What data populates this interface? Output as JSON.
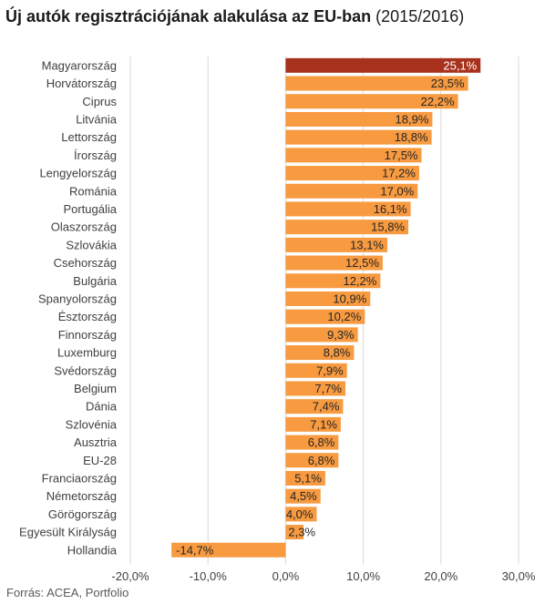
{
  "chart_data": {
    "type": "bar",
    "orientation": "horizontal",
    "title_main": "Új autók regisztrációjának alakulása az EU-ban",
    "title_suffix": "(2015/2016)",
    "source": "Forrás: ACEA, Portfolio",
    "categories": [
      "Magyarország",
      "Horvátország",
      "Ciprus",
      "Litvánia",
      "Lettország",
      "Írország",
      "Lengyelország",
      "Románia",
      "Portugália",
      "Olaszország",
      "Szlovákia",
      "Csehország",
      "Bulgária",
      "Spanyolország",
      "Észtország",
      "Finnország",
      "Luxemburg",
      "Svédország",
      "Belgium",
      "Dánia",
      "Szlovénia",
      "Ausztria",
      "EU-28",
      "Franciaország",
      "Németország",
      "Görögország",
      "Egyesült Királyság",
      "Hollandia"
    ],
    "values": [
      25.1,
      23.5,
      22.2,
      18.9,
      18.8,
      17.5,
      17.2,
      17.0,
      16.1,
      15.8,
      13.1,
      12.5,
      12.2,
      10.9,
      10.2,
      9.3,
      8.8,
      7.9,
      7.7,
      7.4,
      7.1,
      6.8,
      6.8,
      5.1,
      4.5,
      4.0,
      2.3,
      -14.7
    ],
    "value_labels": [
      "25,1%",
      "23,5%",
      "22,2%",
      "18,9%",
      "18,8%",
      "17,5%",
      "17,2%",
      "17,0%",
      "16,1%",
      "15,8%",
      "13,1%",
      "12,5%",
      "12,2%",
      "10,9%",
      "10,2%",
      "9,3%",
      "8,8%",
      "7,9%",
      "7,7%",
      "7,4%",
      "7,1%",
      "6,8%",
      "6,8%",
      "5,1%",
      "4,5%",
      "4,0%",
      "2,3%",
      "-14,7%"
    ],
    "highlight_index": 0,
    "xlim": [
      -20,
      30
    ],
    "xticks": [
      -20,
      -10,
      0,
      10,
      20,
      30
    ],
    "xtick_labels": [
      "-20,0%",
      "-10,0%",
      "0,0%",
      "10,0%",
      "20,0%",
      "30,0%"
    ],
    "grid": true,
    "legend": "none",
    "colors": {
      "bar": "#F79A40",
      "highlight": "#A8311D",
      "grid": "#D9D9D9",
      "text": "#404040"
    }
  }
}
